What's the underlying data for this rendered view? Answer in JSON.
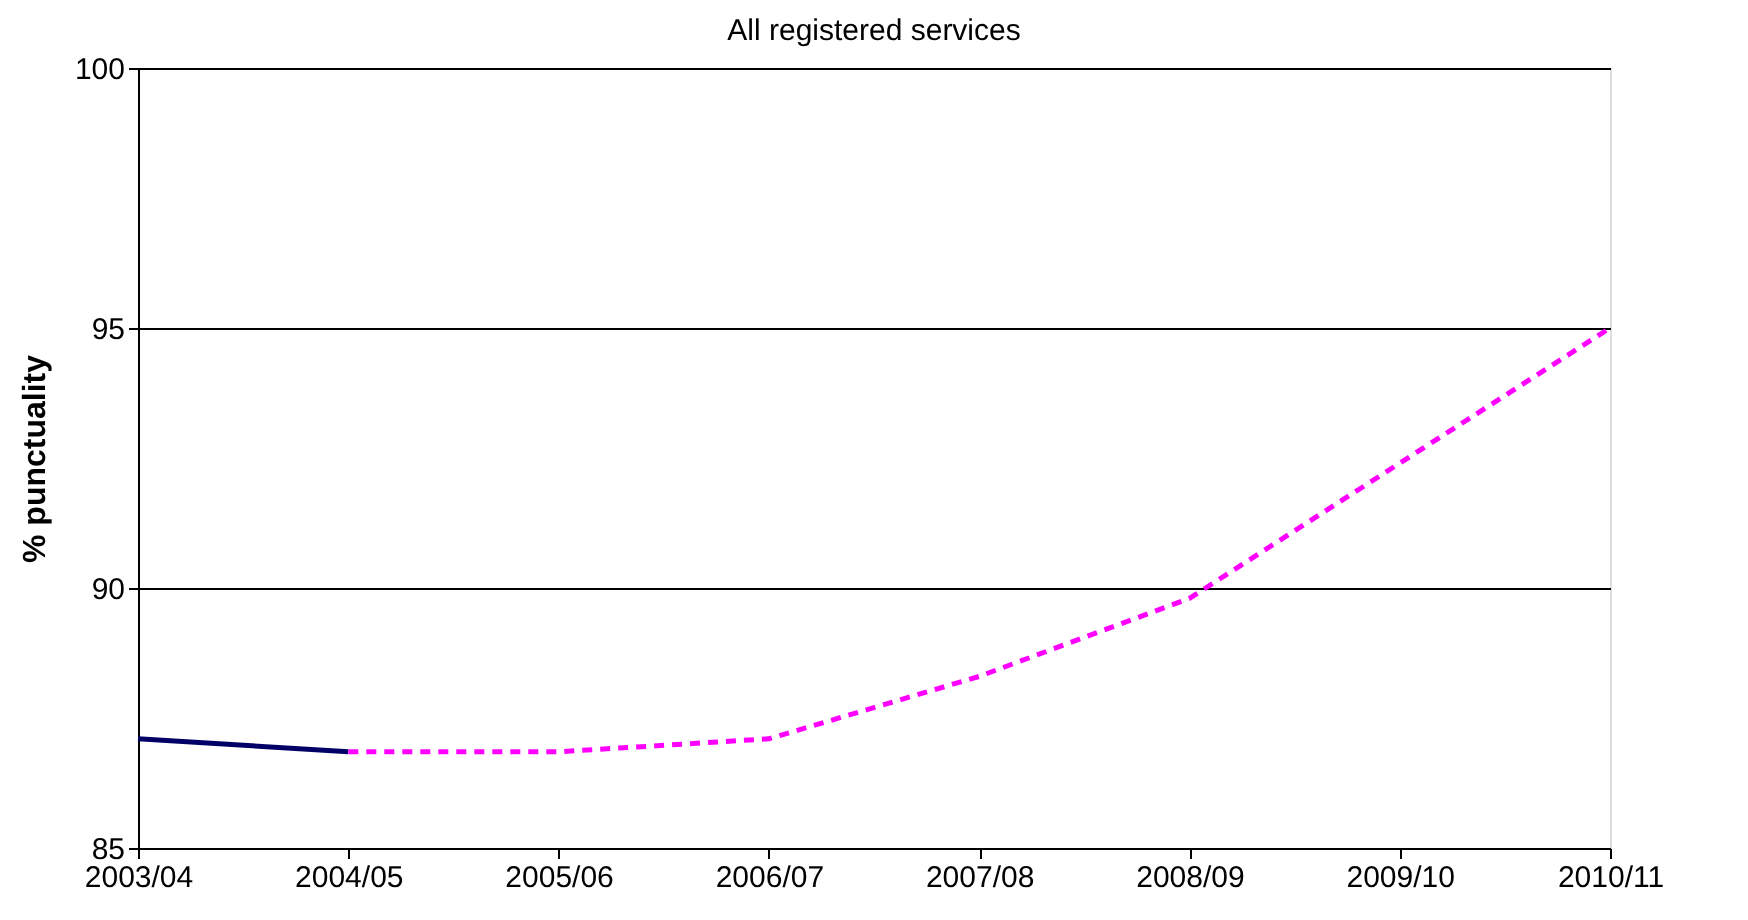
{
  "chart_data": {
    "type": "line",
    "title": "All registered services",
    "ylabel": "% punctuality",
    "categories": [
      "2003/04",
      "2004/05",
      "2005/06",
      "2006/07",
      "2007/08",
      "2008/09",
      "2009/10",
      "2010/11"
    ],
    "series": [
      {
        "color": "#000066",
        "line_style": "solid",
        "values": [
          87.1,
          86.85,
          null,
          null,
          null,
          null,
          null,
          null
        ]
      },
      {
        "color": "#ff00ff",
        "line_style": "dashed",
        "values": [
          null,
          86.85,
          86.85,
          87.1,
          88.3,
          89.8,
          92.4,
          95.0
        ]
      }
    ],
    "ylim": [
      85,
      100
    ],
    "yticks": [
      85,
      90,
      95,
      100
    ],
    "grid": "y",
    "marker": "none"
  }
}
